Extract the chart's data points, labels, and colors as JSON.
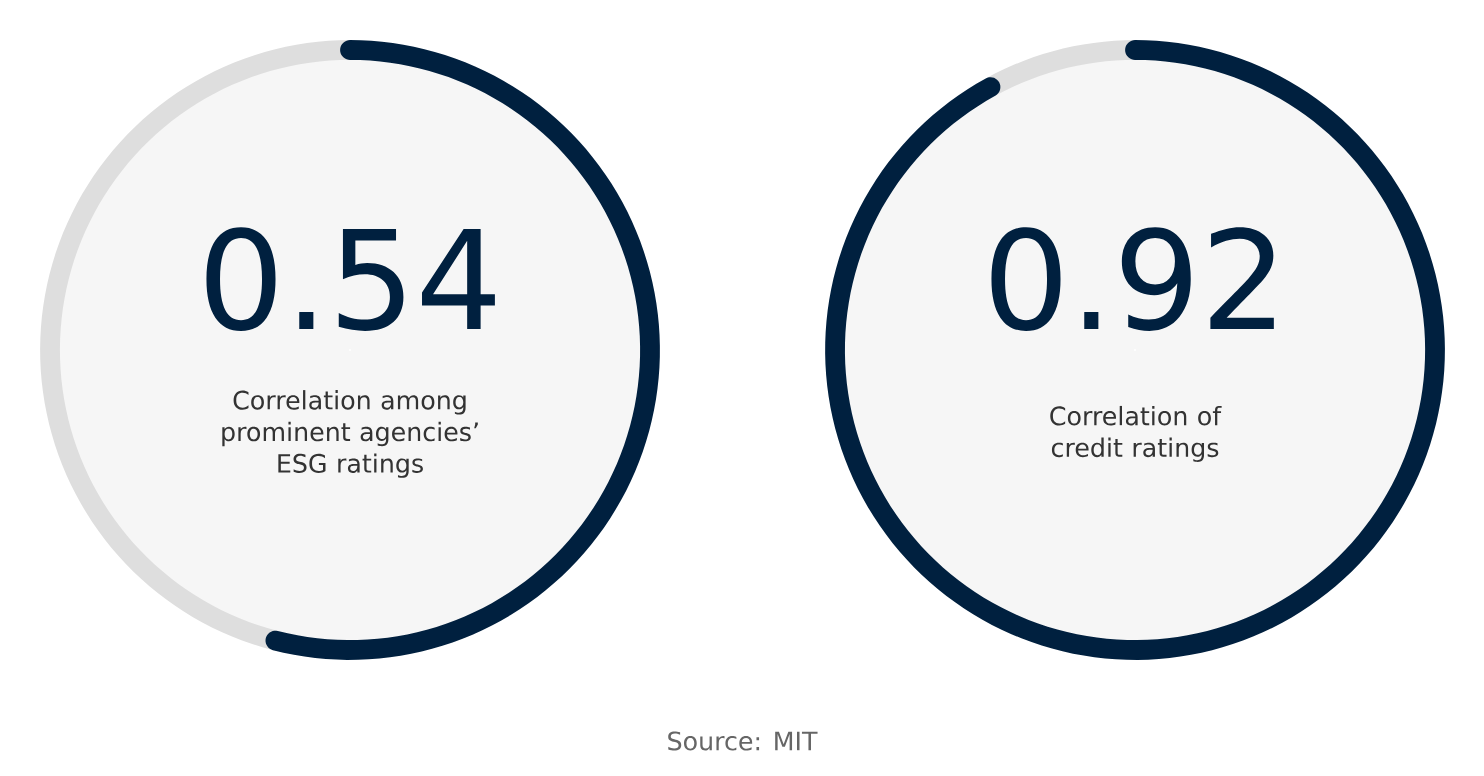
{
  "chart_data": [
    {
      "type": "donut",
      "title": "0.54",
      "subtitle": "Correlation among prominent agencies’ ESG ratings",
      "categories": [
        null,
        null
      ],
      "values": [
        54,
        46
      ],
      "colors": [
        "#00203f",
        "#dedede"
      ]
    },
    {
      "type": "donut",
      "title": "0.92",
      "subtitle": "Correlation of credit ratings",
      "categories": [
        null,
        null
      ],
      "values": [
        92,
        8
      ],
      "colors": [
        "#00203f",
        "#dedede"
      ],
      "annotations": [
        "Source: MIT"
      ]
    }
  ]
}
